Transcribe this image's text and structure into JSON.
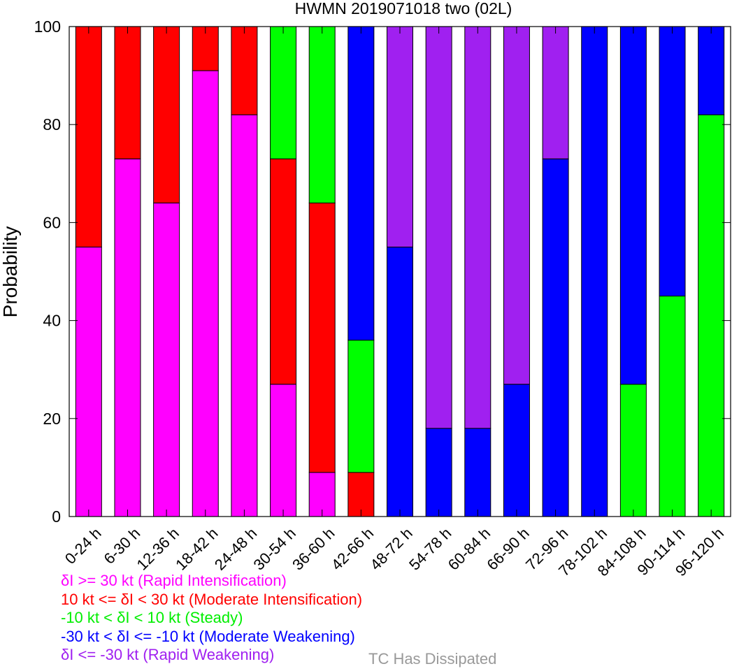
{
  "chart_data": {
    "type": "bar",
    "stacked": true,
    "title": "HWMN 2019071018 two (02L)",
    "ylabel": "Probability",
    "xlabel": "",
    "ylim": [
      0,
      100
    ],
    "yticks": [
      0,
      20,
      40,
      60,
      80,
      100
    ],
    "categories": [
      "0-24 h",
      "6-30 h",
      "12-36 h",
      "18-42 h",
      "24-48 h",
      "30-54 h",
      "36-60 h",
      "42-66 h",
      "48-72 h",
      "54-78 h",
      "60-84 h",
      "66-90 h",
      "72-96 h",
      "78-102 h",
      "84-108 h",
      "90-114 h",
      "96-120 h"
    ],
    "series": [
      {
        "name": "δI >= 30 kt (Rapid Intensification)",
        "color": "#ff00ff",
        "values": [
          55,
          73,
          64,
          91,
          82,
          27,
          9,
          0,
          0,
          0,
          0,
          0,
          0,
          0,
          0,
          0,
          0
        ]
      },
      {
        "name": "10 kt <= δI < 30 kt (Moderate Intensification)",
        "color": "#ff0000",
        "values": [
          45,
          27,
          36,
          9,
          18,
          46,
          55,
          9,
          0,
          0,
          0,
          0,
          0,
          0,
          0,
          0,
          0
        ]
      },
      {
        "name": "-10 kt < δI < 10 kt (Steady)",
        "color": "#00ff00",
        "values": [
          0,
          0,
          0,
          0,
          0,
          27,
          36,
          27,
          0,
          0,
          0,
          0,
          0,
          0,
          27,
          45,
          82
        ]
      },
      {
        "name": "-30 kt < δI <= -10 kt (Moderate Weakening)",
        "color": "#0000ff",
        "values": [
          0,
          0,
          0,
          0,
          0,
          0,
          0,
          64,
          55,
          18,
          18,
          27,
          73,
          100,
          73,
          55,
          18
        ]
      },
      {
        "name": "δI <= -30 kt (Rapid Weakening)",
        "color": "#a020f0",
        "values": [
          0,
          0,
          0,
          0,
          0,
          0,
          0,
          0,
          45,
          82,
          82,
          73,
          27,
          0,
          0,
          0,
          0
        ]
      }
    ],
    "extra_legend": {
      "label": "TC Has Dissipated",
      "color": "#999999"
    }
  }
}
